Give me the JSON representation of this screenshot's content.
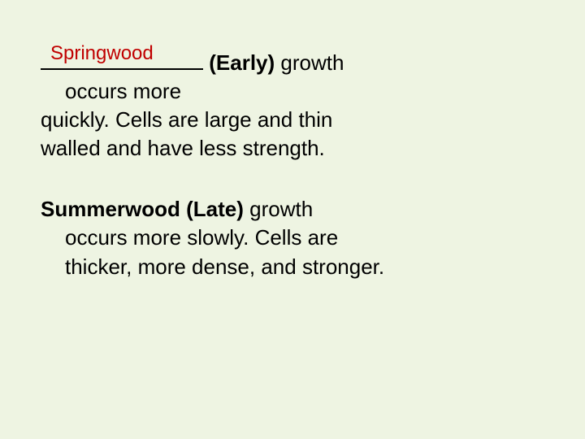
{
  "background_color": "#eef4e2",
  "text_color": "#000000",
  "answer_color": "#c00000",
  "font_family": "Verdana, Geneva, sans-serif",
  "base_font_size": 26,
  "answer_font_size": 24,
  "paragraph1": {
    "blank_answer": "Springwood",
    "bold_part": "(Early)",
    "rest_line1": " growth",
    "line2_indent": "occurs more",
    "line3": "quickly. Cells are large and thin",
    "line4": "walled and have less strength."
  },
  "paragraph2": {
    "bold_part": "Summerwood (Late)",
    "rest_line1": " growth",
    "line2_indent": "occurs more slowly. Cells are",
    "line3_indent": "thicker, more dense, and stronger."
  }
}
